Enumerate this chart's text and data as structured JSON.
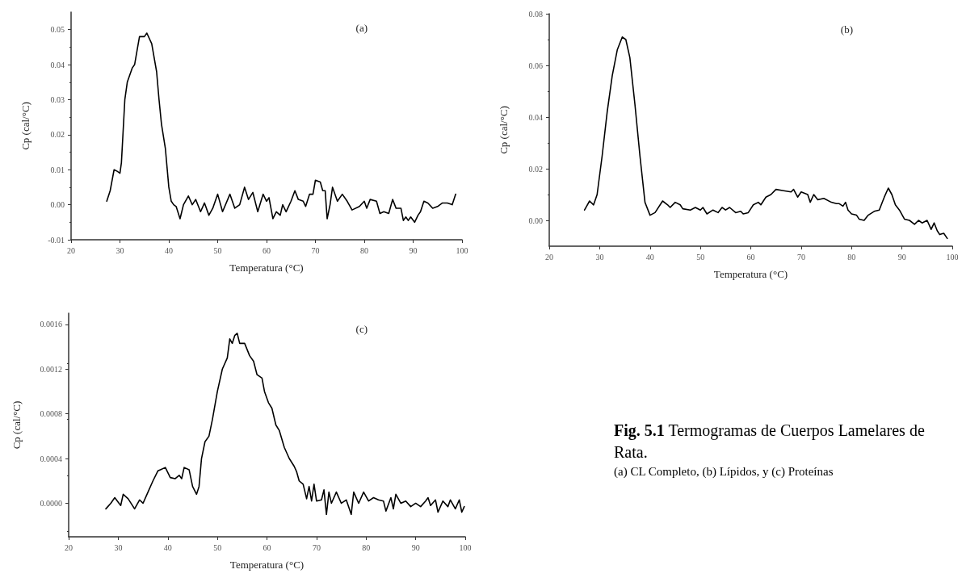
{
  "chart_data": [
    {
      "type": "line",
      "title": "(a)",
      "xlabel": "Temperatura (°C)",
      "ylabel": "Cp (cal/°C)",
      "xlim": [
        20,
        100
      ],
      "xticks": [
        20,
        30,
        40,
        50,
        60,
        70,
        80,
        90,
        100
      ],
      "ylim": [
        -0.01,
        0.055
      ],
      "yticks": [
        {
          "value": -0.01,
          "label": "-0.01"
        },
        {
          "value": 0,
          "label": "0.00"
        },
        {
          "value": 0.01,
          "label": "0.01"
        },
        {
          "value": 0.02,
          "label": "0.02"
        },
        {
          "value": 0.03,
          "label": "0.03"
        },
        {
          "value": 0.04,
          "label": "0.04"
        },
        {
          "value": 0.05,
          "label": "0.05"
        }
      ],
      "series": [
        {
          "color": "#000000",
          "x": [
            27.3,
            28,
            28.8,
            29.5,
            30,
            30.3,
            31,
            31.5,
            32.5,
            33,
            33.5,
            34,
            34.5,
            35,
            35.5,
            36.5,
            37.5,
            38,
            38.5,
            39.3,
            40,
            40.5,
            41,
            41.5,
            42.3,
            43,
            44,
            44.8,
            45.5,
            46.5,
            47.3,
            48.2,
            49,
            50,
            51,
            52.5,
            53.5,
            54.5,
            55.5,
            56.3,
            57.2,
            58.2,
            59.3,
            60,
            60.5,
            61.3,
            62,
            62.8,
            63.3,
            64,
            65,
            65.8,
            66.5,
            67.5,
            68,
            68.8,
            69.5,
            70,
            71,
            71.5,
            72,
            72.4,
            73,
            73.5,
            74.5,
            75.5,
            76.5,
            77.5,
            79,
            80,
            80.5,
            81.2,
            82.5,
            83.2,
            84,
            85,
            85.8,
            86.5,
            87.5,
            88,
            88.5,
            89,
            89.5,
            90.3,
            91,
            91.5,
            92.2,
            93,
            94,
            95,
            96,
            97,
            98,
            98.7
          ],
          "values": [
            0.001,
            0.004,
            0.01,
            0.0095,
            0.009,
            0.012,
            0.03,
            0.035,
            0.039,
            0.04,
            0.044,
            0.048,
            0.048,
            0.048,
            0.049,
            0.046,
            0.038,
            0.03,
            0.023,
            0.016,
            0.005,
            0.001,
            0,
            -0.0005,
            -0.004,
            0,
            0.0025,
            0,
            0.0015,
            -0.002,
            0.0005,
            -0.003,
            -0.001,
            0.003,
            -0.002,
            0.003,
            -0.001,
            0,
            0.005,
            0.0015,
            0.0035,
            -0.002,
            0.003,
            0.001,
            0.002,
            -0.004,
            -0.002,
            -0.003,
            0,
            -0.002,
            0.001,
            0.004,
            0.0015,
            0.001,
            -0.0005,
            0.003,
            0.003,
            0.007,
            0.0065,
            0.004,
            0.004,
            -0.004,
            0,
            0.005,
            0.001,
            0.003,
            0.001,
            -0.0015,
            -0.0005,
            0.001,
            -0.001,
            0.0015,
            0.001,
            -0.0025,
            -0.002,
            -0.0025,
            0.0015,
            -0.001,
            -0.001,
            -0.0045,
            -0.0035,
            -0.0045,
            -0.0035,
            -0.005,
            -0.003,
            -0.002,
            0.001,
            0.0005,
            -0.001,
            -0.0005,
            0.0005,
            0.0005,
            0,
            0.003
          ]
        }
      ]
    },
    {
      "type": "line",
      "title": "(b)",
      "xlabel": "Temperatura (°C)",
      "ylabel": "Cp (cal/°C)",
      "xlim": [
        20,
        100
      ],
      "xticks": [
        20,
        30,
        40,
        50,
        60,
        70,
        80,
        90,
        100
      ],
      "ylim": [
        -0.01,
        0.08
      ],
      "yticks": [
        {
          "value": 0,
          "label": "0.00"
        },
        {
          "value": 0.02,
          "label": "0.02"
        },
        {
          "value": 0.04,
          "label": "0.04"
        },
        {
          "value": 0.06,
          "label": "0.06"
        },
        {
          "value": 0.08,
          "label": "0.08"
        }
      ],
      "series": [
        {
          "color": "#000000",
          "x": [
            27,
            28,
            28.8,
            29.5,
            30.5,
            31.5,
            32.5,
            33.5,
            34.5,
            35.2,
            36,
            37,
            38,
            39,
            40,
            41,
            42.5,
            43.5,
            44,
            45,
            46,
            46.5,
            48,
            49,
            50,
            50.5,
            51.3,
            52.5,
            53.5,
            54.3,
            55,
            55.8,
            57,
            58,
            58.5,
            59.5,
            60.5,
            61.5,
            62,
            63,
            64,
            65,
            66.5,
            68,
            68.5,
            69.3,
            70,
            71.3,
            71.8,
            72.5,
            73.3,
            74.5,
            76,
            77,
            77.5,
            78.3,
            78.8,
            79.3,
            80,
            81,
            81.5,
            82.5,
            83.3,
            84.5,
            85.5,
            86.5,
            87.3,
            88,
            88.7,
            89.5,
            90.5,
            91.5,
            92.5,
            93.3,
            94,
            95,
            95.8,
            96.4,
            97,
            97.5,
            98.3,
            99
          ],
          "values": [
            0.004,
            0.0075,
            0.006,
            0.01,
            0.025,
            0.042,
            0.056,
            0.066,
            0.071,
            0.07,
            0.063,
            0.045,
            0.025,
            0.007,
            0.002,
            0.003,
            0.0075,
            0.006,
            0.005,
            0.007,
            0.006,
            0.0045,
            0.004,
            0.005,
            0.004,
            0.005,
            0.0025,
            0.004,
            0.003,
            0.005,
            0.004,
            0.005,
            0.003,
            0.0035,
            0.0025,
            0.003,
            0.006,
            0.007,
            0.006,
            0.009,
            0.01,
            0.012,
            0.0115,
            0.011,
            0.012,
            0.009,
            0.011,
            0.01,
            0.007,
            0.01,
            0.008,
            0.0085,
            0.007,
            0.0065,
            0.0065,
            0.0055,
            0.007,
            0.004,
            0.0025,
            0.002,
            0.0005,
            0,
            0.002,
            0.0035,
            0.004,
            0.009,
            0.0125,
            0.01,
            0.006,
            0.004,
            0.0005,
            0,
            -0.0015,
            0,
            -0.001,
            0,
            -0.0035,
            -0.001,
            -0.004,
            -0.0055,
            -0.005,
            -0.007
          ]
        }
      ]
    },
    {
      "type": "line",
      "title": "(c)",
      "xlabel": "Temperatura (°C)",
      "ylabel": "Cp (cal/°C)",
      "xlim": [
        20,
        100
      ],
      "xticks": [
        20,
        30,
        40,
        50,
        60,
        70,
        80,
        90,
        100
      ],
      "ylim": [
        -0.0003,
        0.0017
      ],
      "yticks": [
        {
          "value": 0,
          "label": "0.0000"
        },
        {
          "value": 0.0004,
          "label": "0.0004"
        },
        {
          "value": 0.0008,
          "label": "0.0008"
        },
        {
          "value": 0.0012,
          "label": "0.0012"
        },
        {
          "value": 0.0016,
          "label": "0.0016"
        }
      ],
      "series": [
        {
          "color": "#000000",
          "x": [
            27.5,
            28.5,
            29.3,
            30.5,
            31,
            32,
            33.3,
            34.3,
            35,
            36,
            37,
            38,
            38.5,
            39.5,
            40.5,
            41.5,
            42.3,
            42.8,
            43.3,
            44.3,
            45,
            45.8,
            46.3,
            46.8,
            47.5,
            48.3,
            49,
            50,
            51,
            52,
            52.5,
            53,
            53.5,
            54,
            54.5,
            55.5,
            56.5,
            57.3,
            58,
            59,
            59.5,
            60.3,
            61,
            61.8,
            62.5,
            63.5,
            64.5,
            65.5,
            66,
            66.5,
            67.3,
            68,
            68.5,
            69,
            69.5,
            70,
            71,
            71.5,
            72,
            72.5,
            73,
            74,
            75,
            76,
            77,
            77.5,
            78.5,
            79.5,
            80.5,
            81.5,
            82.5,
            83.5,
            84,
            85,
            85.5,
            86,
            87,
            88,
            89,
            90,
            91,
            92,
            92.5,
            93,
            94,
            94.5,
            95.5,
            96.5,
            97,
            98,
            98.8,
            99.3,
            99.8
          ],
          "values": [
            -5e-05,
            0,
            5e-05,
            -2e-05,
            8e-05,
            4e-05,
            -5e-05,
            3e-05,
            0,
            0.0001,
            0.0002,
            0.00029,
            0.0003,
            0.00032,
            0.00023,
            0.00022,
            0.00025,
            0.00022,
            0.00032,
            0.0003,
            0.00015,
            8e-05,
            0.00015,
            0.0004,
            0.00055,
            0.0006,
            0.00075,
            0.001,
            0.0012,
            0.0013,
            0.00147,
            0.00143,
            0.0015,
            0.00152,
            0.00143,
            0.00143,
            0.00132,
            0.00127,
            0.00115,
            0.00112,
            0.001,
            0.0009,
            0.00085,
            0.0007,
            0.00065,
            0.0005,
            0.0004,
            0.00033,
            0.00028,
            0.0002,
            0.00017,
            4e-05,
            0.00015,
            2e-05,
            0.00017,
            2e-05,
            3e-05,
            0.00012,
            -0.0001,
            0.0001,
            0,
            0.0001,
            0,
            3e-05,
            -0.0001,
            0.0001,
            0,
            0.0001,
            2e-05,
            5e-05,
            3e-05,
            2e-05,
            -7e-05,
            5e-05,
            -5e-05,
            8e-05,
            0,
            2e-05,
            -3e-05,
            0,
            -3e-05,
            2e-05,
            5e-05,
            -2e-05,
            3e-05,
            -8e-05,
            2e-05,
            -3e-05,
            3e-05,
            -5e-05,
            3e-05,
            -8e-05,
            -3e-05
          ]
        }
      ]
    },
    {
      "type": "other",
      "title": "Fig. 5.1",
      "subtitle": "Termogramas de Cuerpos Lamelares de Rata.",
      "annotations": [
        "(a) CL Completo, (b) Lípidos, y (c) Proteínas"
      ]
    }
  ]
}
